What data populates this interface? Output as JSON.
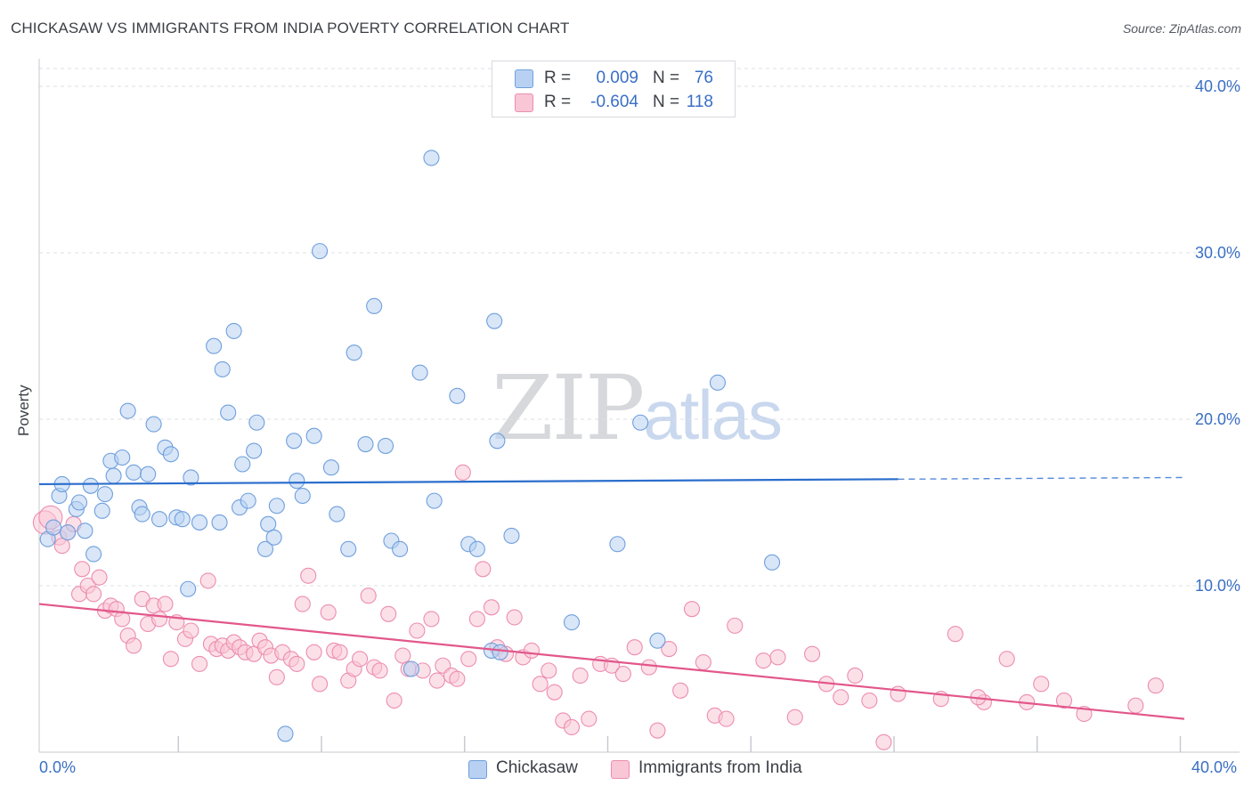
{
  "header": {
    "title": "CHICKASAW VS IMMIGRANTS FROM INDIA POVERTY CORRELATION CHART",
    "source": "Source: ZipAtlas.com"
  },
  "watermark": {
    "zip": "ZIP",
    "atlas": "atlas"
  },
  "legend": {
    "r_label": "R =",
    "n_label": "N =",
    "series": [
      {
        "r": "0.009",
        "n": "76",
        "fill": "#b8d1f3",
        "stroke": "#6f9fdc"
      },
      {
        "r": "-0.604",
        "n": "118",
        "fill": "#f9c6d6",
        "stroke": "#ec8db0"
      }
    ]
  },
  "bottom_legend": [
    {
      "label": "Chickasaw",
      "fill": "#b8d1f3",
      "stroke": "#6f9fdc"
    },
    {
      "label": "Immigrants from India",
      "fill": "#f9c6d6",
      "stroke": "#ec8db0"
    }
  ],
  "colors": {
    "blue_line": "#2a6dcc",
    "pink_line": "#e2578a",
    "axis_text": "#3a6fc4",
    "grid": "#dcdfe4"
  },
  "chart_data": {
    "type": "scatter",
    "title": "CHICKASAW VS IMMIGRANTS FROM INDIA POVERTY CORRELATION CHART",
    "xlabel": "",
    "ylabel": "Poverty",
    "xlim": [
      0,
      40
    ],
    "ylim": [
      0,
      40
    ],
    "x_tick_labels": [
      {
        "value": 0,
        "label": "0.0%"
      },
      {
        "value": 40,
        "label": "40.0%"
      }
    ],
    "y_tick_labels": [
      {
        "value": 10,
        "label": "10.0%"
      },
      {
        "value": 20,
        "label": "20.0%"
      },
      {
        "value": 30,
        "label": "30.0%"
      },
      {
        "value": 40,
        "label": "40.0%"
      }
    ],
    "grid": true,
    "legend_position": "top-center",
    "series": [
      {
        "name": "Chickasaw",
        "R": 0.009,
        "N": 76,
        "trend": {
          "x0": 0,
          "y0": 16.1,
          "x1": 30,
          "y1": 16.4,
          "dashed_to_x": 40,
          "dashed_to_y": 16.5
        },
        "points": [
          [
            0.3,
            12.8
          ],
          [
            0.5,
            13.5
          ],
          [
            0.7,
            15.4
          ],
          [
            0.8,
            16.1
          ],
          [
            1.0,
            13.2
          ],
          [
            1.3,
            14.6
          ],
          [
            1.4,
            15.0
          ],
          [
            1.6,
            13.3
          ],
          [
            1.9,
            11.9
          ],
          [
            1.8,
            16.0
          ],
          [
            2.2,
            14.5
          ],
          [
            2.3,
            15.5
          ],
          [
            2.5,
            17.5
          ],
          [
            2.6,
            16.6
          ],
          [
            2.9,
            17.7
          ],
          [
            3.1,
            20.5
          ],
          [
            3.3,
            16.8
          ],
          [
            3.5,
            14.7
          ],
          [
            3.6,
            14.3
          ],
          [
            3.8,
            16.7
          ],
          [
            4.0,
            19.7
          ],
          [
            4.2,
            14.0
          ],
          [
            4.4,
            18.3
          ],
          [
            4.6,
            17.9
          ],
          [
            4.8,
            14.1
          ],
          [
            5.0,
            14.0
          ],
          [
            5.2,
            9.8
          ],
          [
            5.3,
            16.5
          ],
          [
            5.6,
            13.8
          ],
          [
            6.1,
            24.4
          ],
          [
            6.3,
            13.8
          ],
          [
            6.4,
            23.0
          ],
          [
            6.6,
            20.4
          ],
          [
            6.8,
            25.3
          ],
          [
            7.0,
            14.7
          ],
          [
            7.1,
            17.3
          ],
          [
            7.3,
            15.1
          ],
          [
            7.5,
            18.1
          ],
          [
            7.6,
            19.8
          ],
          [
            7.9,
            12.2
          ],
          [
            8.0,
            13.7
          ],
          [
            8.2,
            12.9
          ],
          [
            8.3,
            14.8
          ],
          [
            8.6,
            1.1
          ],
          [
            8.9,
            18.7
          ],
          [
            9.0,
            16.3
          ],
          [
            9.2,
            15.4
          ],
          [
            9.6,
            19.0
          ],
          [
            9.8,
            30.1
          ],
          [
            10.2,
            17.1
          ],
          [
            10.4,
            14.3
          ],
          [
            10.8,
            12.2
          ],
          [
            11.0,
            24.0
          ],
          [
            11.4,
            18.5
          ],
          [
            11.7,
            26.8
          ],
          [
            12.1,
            18.4
          ],
          [
            12.3,
            12.7
          ],
          [
            12.6,
            12.2
          ],
          [
            13.0,
            5.0
          ],
          [
            13.3,
            22.8
          ],
          [
            13.7,
            35.7
          ],
          [
            13.8,
            15.1
          ],
          [
            14.6,
            21.4
          ],
          [
            15.0,
            12.5
          ],
          [
            15.3,
            12.2
          ],
          [
            15.8,
            6.1
          ],
          [
            15.9,
            25.9
          ],
          [
            16.0,
            18.7
          ],
          [
            16.5,
            13.0
          ],
          [
            18.6,
            7.8
          ],
          [
            20.2,
            12.5
          ],
          [
            21.0,
            19.8
          ],
          [
            21.6,
            6.7
          ],
          [
            23.7,
            22.2
          ],
          [
            25.6,
            11.4
          ],
          [
            16.1,
            6.0
          ]
        ]
      },
      {
        "name": "Immigrants from India",
        "R": -0.604,
        "N": 118,
        "trend": {
          "x0": 0,
          "y0": 8.9,
          "x1": 40,
          "y1": 2.0
        },
        "points": [
          [
            0.2,
            13.8
          ],
          [
            0.4,
            14.1
          ],
          [
            0.7,
            12.9
          ],
          [
            0.8,
            12.4
          ],
          [
            1.0,
            13.2
          ],
          [
            1.2,
            13.7
          ],
          [
            1.4,
            9.5
          ],
          [
            1.5,
            11.0
          ],
          [
            1.7,
            10.0
          ],
          [
            1.9,
            9.5
          ],
          [
            2.1,
            10.5
          ],
          [
            2.3,
            8.5
          ],
          [
            2.5,
            8.8
          ],
          [
            2.7,
            8.6
          ],
          [
            2.9,
            8.0
          ],
          [
            3.1,
            7.0
          ],
          [
            3.3,
            6.4
          ],
          [
            3.6,
            9.2
          ],
          [
            3.8,
            7.7
          ],
          [
            4.0,
            8.8
          ],
          [
            4.2,
            8.0
          ],
          [
            4.4,
            8.9
          ],
          [
            4.6,
            5.6
          ],
          [
            4.8,
            7.8
          ],
          [
            5.1,
            6.8
          ],
          [
            5.3,
            7.3
          ],
          [
            5.6,
            5.3
          ],
          [
            5.9,
            10.3
          ],
          [
            6.0,
            6.5
          ],
          [
            6.2,
            6.2
          ],
          [
            6.4,
            6.4
          ],
          [
            6.6,
            6.1
          ],
          [
            6.8,
            6.6
          ],
          [
            7.0,
            6.3
          ],
          [
            7.2,
            6.0
          ],
          [
            7.5,
            5.9
          ],
          [
            7.7,
            6.7
          ],
          [
            7.9,
            6.3
          ],
          [
            8.1,
            5.8
          ],
          [
            8.3,
            4.5
          ],
          [
            8.5,
            6.0
          ],
          [
            8.8,
            5.6
          ],
          [
            9.0,
            5.3
          ],
          [
            9.2,
            8.9
          ],
          [
            9.4,
            10.6
          ],
          [
            9.6,
            6.0
          ],
          [
            9.8,
            4.1
          ],
          [
            10.1,
            8.4
          ],
          [
            10.3,
            6.1
          ],
          [
            10.5,
            6.0
          ],
          [
            10.8,
            4.3
          ],
          [
            11.0,
            5.0
          ],
          [
            11.2,
            5.6
          ],
          [
            11.5,
            9.4
          ],
          [
            11.7,
            5.1
          ],
          [
            11.9,
            4.9
          ],
          [
            12.2,
            8.3
          ],
          [
            12.4,
            3.1
          ],
          [
            12.7,
            5.8
          ],
          [
            12.9,
            5.0
          ],
          [
            13.2,
            7.3
          ],
          [
            13.4,
            4.9
          ],
          [
            13.7,
            8.0
          ],
          [
            13.9,
            4.3
          ],
          [
            14.1,
            5.2
          ],
          [
            14.4,
            4.6
          ],
          [
            14.6,
            4.4
          ],
          [
            14.8,
            16.8
          ],
          [
            15.0,
            5.6
          ],
          [
            15.3,
            8.0
          ],
          [
            15.5,
            11.0
          ],
          [
            15.8,
            8.7
          ],
          [
            16.0,
            6.3
          ],
          [
            16.3,
            5.9
          ],
          [
            16.6,
            8.1
          ],
          [
            16.9,
            5.7
          ],
          [
            17.2,
            6.1
          ],
          [
            17.5,
            4.1
          ],
          [
            17.8,
            4.9
          ],
          [
            18.0,
            3.6
          ],
          [
            18.3,
            1.9
          ],
          [
            18.6,
            1.5
          ],
          [
            18.9,
            4.6
          ],
          [
            19.2,
            2.0
          ],
          [
            19.6,
            5.3
          ],
          [
            20.0,
            5.2
          ],
          [
            20.4,
            4.7
          ],
          [
            20.8,
            6.3
          ],
          [
            21.3,
            5.1
          ],
          [
            21.6,
            1.3
          ],
          [
            22.0,
            6.2
          ],
          [
            22.4,
            3.7
          ],
          [
            22.8,
            8.6
          ],
          [
            23.2,
            5.4
          ],
          [
            23.6,
            2.2
          ],
          [
            24.0,
            2.0
          ],
          [
            24.3,
            7.6
          ],
          [
            25.3,
            5.5
          ],
          [
            25.8,
            5.7
          ],
          [
            26.4,
            2.1
          ],
          [
            27.0,
            5.9
          ],
          [
            27.5,
            4.1
          ],
          [
            28.0,
            3.3
          ],
          [
            28.5,
            4.6
          ],
          [
            29.0,
            3.1
          ],
          [
            29.5,
            0.6
          ],
          [
            30.0,
            3.5
          ],
          [
            31.5,
            3.2
          ],
          [
            32.0,
            7.1
          ],
          [
            33.0,
            3.0
          ],
          [
            33.8,
            5.6
          ],
          [
            34.5,
            3.0
          ],
          [
            35.0,
            4.1
          ],
          [
            35.8,
            3.1
          ],
          [
            36.5,
            2.3
          ],
          [
            38.3,
            2.8
          ],
          [
            39.0,
            4.0
          ],
          [
            32.8,
            3.3
          ]
        ]
      }
    ]
  }
}
